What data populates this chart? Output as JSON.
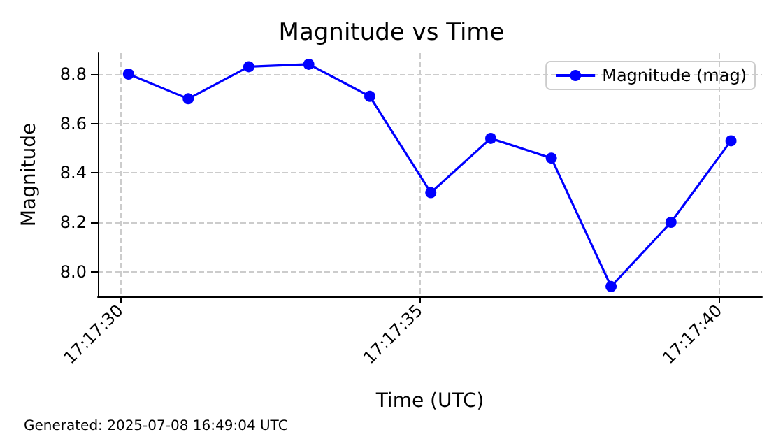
{
  "chart_data": {
    "type": "line",
    "title": "Magnitude vs Time",
    "xlabel": "Time (UTC)",
    "ylabel": "Magnitude",
    "x": [
      17.291706,
      17.291983,
      17.292264,
      17.292542,
      17.292825,
      17.293108,
      17.293386,
      17.293667,
      17.293944,
      17.294222,
      17.2945
    ],
    "series": [
      {
        "name": "Magnitude (mag)",
        "color": "#0000ff",
        "values": [
          8.8,
          8.7,
          8.83,
          8.84,
          8.71,
          8.32,
          8.54,
          8.46,
          7.94,
          8.2,
          8.53
        ]
      }
    ],
    "xlim": [
      17.291564,
      17.294644
    ],
    "xticks": [
      {
        "value": 17.291667,
        "label": "17:17:30"
      },
      {
        "value": 17.293056,
        "label": "17:17:35"
      },
      {
        "value": 17.294444,
        "label": "17:17:40"
      }
    ],
    "ylim": [
      7.9,
      8.885
    ],
    "yticks": [
      {
        "value": 8,
        "label": "8.0"
      },
      8.2,
      8.4,
      8.6,
      8.8
    ],
    "grid": true,
    "legend": "top right",
    "marker": "circle",
    "line_style": "solid",
    "annotations": [
      "Generated: 2025-07-08 16:49:04 UTC"
    ]
  }
}
